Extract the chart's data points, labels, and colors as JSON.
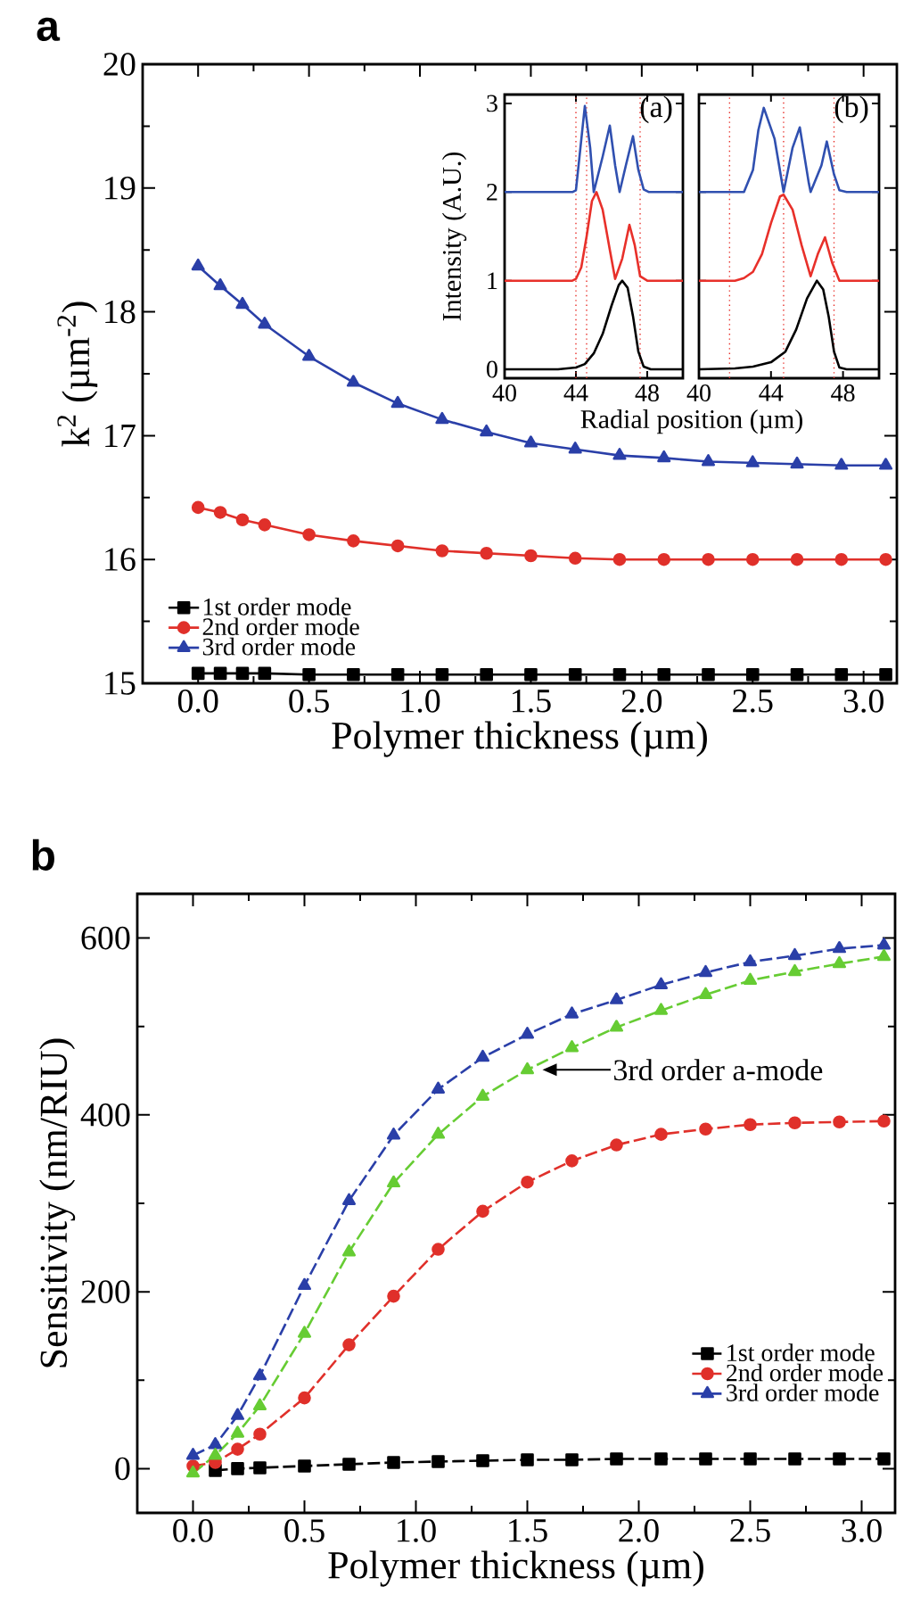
{
  "chart_data": [
    {
      "type": "line",
      "title": "a",
      "xlabel": "Polymer thickness (µm)",
      "ylabel": "k$^{2}$ (µm$^{-2}$)",
      "x": [
        0,
        0.1,
        0.2,
        0.3,
        0.5,
        0.7,
        0.9,
        1.1,
        1.3,
        1.5,
        1.7,
        1.9,
        2.1,
        2.3,
        2.5,
        2.7,
        2.9,
        3.1
      ],
      "series": [
        {
          "name": "1st order mode",
          "color": "#000000",
          "marker": "square",
          "values": [
            15.08,
            15.08,
            15.08,
            15.08,
            15.07,
            15.07,
            15.07,
            15.07,
            15.07,
            15.07,
            15.07,
            15.07,
            15.07,
            15.07,
            15.07,
            15.07,
            15.07,
            15.07
          ]
        },
        {
          "name": "2nd order mode",
          "color": "#e0302a",
          "marker": "circle",
          "values": [
            16.42,
            16.38,
            16.32,
            16.28,
            16.2,
            16.15,
            16.11,
            16.07,
            16.05,
            16.03,
            16.01,
            16.0,
            16.0,
            16.0,
            16.0,
            16.0,
            16.0,
            16.0
          ]
        },
        {
          "name": "3rd order mode",
          "color": "#2a3fa8",
          "marker": "triangle",
          "values": [
            18.37,
            18.21,
            18.06,
            17.9,
            17.64,
            17.43,
            17.26,
            17.13,
            17.03,
            16.94,
            16.89,
            16.84,
            16.82,
            16.79,
            16.78,
            16.77,
            16.76,
            16.76
          ]
        }
      ],
      "xlim": [
        -0.25,
        3.15
      ],
      "ylim": [
        15,
        20
      ],
      "xticks": [
        {
          "value": 0,
          "label": "0.0"
        },
        0.5,
        {
          "value": 1,
          "label": "1.0"
        },
        1.5,
        {
          "value": 2,
          "label": "2.0"
        },
        2.5,
        {
          "value": 3,
          "label": "3.0"
        }
      ],
      "yticks": [
        15,
        16,
        17,
        18,
        19,
        20
      ],
      "legend": "bottom left",
      "line_style": "solid"
    },
    {
      "type": "line",
      "title": "(a)",
      "xlabel": "Radial position (µm)",
      "ylabel": "Intensity (A.U.)",
      "series": [
        {
          "color": "#000000",
          "x": [
            40,
            43,
            44,
            44.5,
            45,
            45.5,
            46,
            46.4,
            46.6,
            46.9,
            47.2,
            47.5,
            47.8,
            48.2,
            50
          ],
          "values": [
            0,
            0,
            0.02,
            0.06,
            0.18,
            0.4,
            0.72,
            0.95,
            1.0,
            0.92,
            0.6,
            0.2,
            0.03,
            0,
            0
          ]
        },
        {
          "color": "#e8302a",
          "x": [
            40,
            43.8,
            44.0,
            44.3,
            44.6,
            44.9,
            45.15,
            45.5,
            45.9,
            46.2,
            46.6,
            47.0,
            47.3,
            47.6,
            48,
            50
          ],
          "values": [
            1,
            1,
            1.02,
            1.15,
            1.5,
            1.9,
            2.0,
            1.8,
            1.35,
            1.02,
            1.25,
            1.63,
            1.4,
            1.05,
            1.0,
            1
          ]
        },
        {
          "color": "#3050b0",
          "x": [
            40,
            43.8,
            44.0,
            44.2,
            44.5,
            44.8,
            45.0,
            45.5,
            45.9,
            46.2,
            46.45,
            46.8,
            47.2,
            47.5,
            47.8,
            48.1,
            50
          ],
          "values": [
            2,
            2,
            2.02,
            2.4,
            2.97,
            2.5,
            2.0,
            2.4,
            2.75,
            2.3,
            2.0,
            2.3,
            2.63,
            2.25,
            2.03,
            2,
            2
          ]
        }
      ],
      "xlim": [
        40,
        50
      ],
      "ylim": [
        -0.1,
        3.1
      ],
      "xticks": [
        40,
        44,
        48
      ],
      "yticks": [
        0,
        1,
        2,
        3
      ],
      "ref_lines": [
        {
          "axis": "x",
          "value": 44.0,
          "color": "#e8302a",
          "line_style": "dotted"
        },
        {
          "axis": "x",
          "value": 44.6,
          "color": "#e8302a",
          "line_style": "dotted"
        },
        {
          "axis": "x",
          "value": 47.6,
          "color": "#e8302a",
          "line_style": "dotted"
        }
      ],
      "line_style": "solid"
    },
    {
      "type": "line",
      "title": "(b)",
      "series": [
        {
          "color": "#000000",
          "x": [
            40,
            42,
            43,
            44,
            44.8,
            45.4,
            46,
            46.55,
            46.9,
            47.2,
            47.5,
            47.8,
            48.2,
            50
          ],
          "values": [
            0,
            0.01,
            0.03,
            0.08,
            0.2,
            0.45,
            0.8,
            1.0,
            0.9,
            0.6,
            0.2,
            0.02,
            0,
            0
          ]
        },
        {
          "color": "#e8302a",
          "x": [
            40,
            42,
            42.5,
            43,
            43.5,
            44,
            44.5,
            44.7,
            45.2,
            45.7,
            46.2,
            46.6,
            47.0,
            47.4,
            47.8,
            50
          ],
          "values": [
            1,
            1,
            1.03,
            1.1,
            1.3,
            1.65,
            1.95,
            1.97,
            1.8,
            1.4,
            1.05,
            1.3,
            1.49,
            1.2,
            1.0,
            1
          ]
        },
        {
          "color": "#3050b0",
          "x": [
            40,
            42.5,
            43,
            43.3,
            43.6,
            44.2,
            44.7,
            45.2,
            45.6,
            46.1,
            46.2,
            46.8,
            47.1,
            47.5,
            47.8,
            48.2,
            50
          ],
          "values": [
            2,
            2,
            2.25,
            2.7,
            2.95,
            2.6,
            2.0,
            2.5,
            2.73,
            2.1,
            2.0,
            2.3,
            2.57,
            2.2,
            2.02,
            2,
            2
          ]
        }
      ],
      "xlim": [
        40,
        50
      ],
      "ylim": [
        -0.1,
        3.1
      ],
      "xticks": [
        40,
        44,
        48
      ],
      "yticks": [
        0,
        1,
        2,
        3
      ],
      "tick_labels": "x",
      "ref_lines": [
        {
          "axis": "x",
          "value": 41.7,
          "color": "#e8302a",
          "line_style": "dotted"
        },
        {
          "axis": "x",
          "value": 44.7,
          "color": "#e8302a",
          "line_style": "dotted"
        },
        {
          "axis": "x",
          "value": 47.5,
          "color": "#e8302a",
          "line_style": "dotted"
        }
      ],
      "line_style": "solid"
    },
    {
      "type": "line",
      "title": "b",
      "xlabel": "Polymer thickness (µm)",
      "ylabel": "Sensitivity (nm/RIU)",
      "x": [
        0,
        0.1,
        0.2,
        0.3,
        0.5,
        0.7,
        0.9,
        1.1,
        1.3,
        1.5,
        1.7,
        1.9,
        2.1,
        2.3,
        2.5,
        2.7,
        2.9,
        3.1
      ],
      "series": [
        {
          "name": "1st order mode",
          "color": "#000000",
          "marker": "square",
          "values": [
            null,
            -2,
            0,
            1,
            3,
            5,
            7,
            8,
            9,
            10,
            10,
            11,
            11,
            11,
            11,
            11,
            11,
            11
          ]
        },
        {
          "name": "2nd order mode",
          "color": "#e0302a",
          "marker": "circle",
          "values": [
            3,
            7,
            22,
            39,
            80,
            140,
            195,
            248,
            291,
            324,
            348,
            366,
            378,
            384,
            389,
            391,
            392,
            393
          ]
        },
        {
          "name": "3rd order mode",
          "color": "#2a3fa8",
          "marker": "triangle",
          "values": [
            15,
            27,
            60,
            105,
            207,
            303,
            377,
            429,
            465,
            491,
            514,
            530,
            547,
            561,
            573,
            580,
            588,
            592
          ]
        },
        {
          "color": "#66cc33",
          "marker": "triangle",
          "values": [
            -5,
            15,
            40,
            71,
            153,
            245,
            323,
            378,
            421,
            451,
            476,
            499,
            518,
            536,
            552,
            562,
            571,
            579
          ]
        }
      ],
      "annotations": [
        {
          "text": "3rd order a-mode",
          "x": 1.5,
          "y": 451
        }
      ],
      "xlim": [
        -0.25,
        3.15
      ],
      "ylim": [
        -50,
        650
      ],
      "xticks": [
        {
          "value": 0,
          "label": "0.0"
        },
        0.5,
        {
          "value": 1,
          "label": "1.0"
        },
        1.5,
        {
          "value": 2,
          "label": "2.0"
        },
        2.5,
        {
          "value": 3,
          "label": "3.0"
        }
      ],
      "yticks": [
        0,
        200,
        400,
        600
      ],
      "legend": "bottom right",
      "line_style": "dashed"
    }
  ]
}
